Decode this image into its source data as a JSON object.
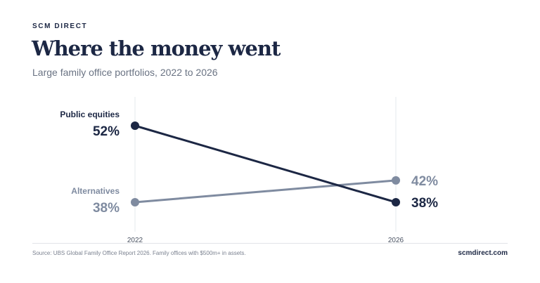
{
  "header": {
    "brand": "SCM DIRECT",
    "title": "Where the money went",
    "subtitle": "Large family office portfolios, 2022 to 2026"
  },
  "footer": {
    "source": "Source: UBS Global Family Office Report 2026. Family offices with $500m+ in assets.",
    "domain": "scmdirect.com"
  },
  "colors": {
    "public_equities": "#1c2744",
    "alternatives": "#7f8ba0",
    "gridline": "#e6e8ec",
    "axis_label": "#4a5262"
  },
  "chart_data": {
    "type": "line",
    "title": "Where the money went",
    "subtitle": "Large family office portfolios, 2022 to 2026",
    "x": [
      "2022",
      "2026"
    ],
    "series": [
      {
        "name": "Public equities",
        "values": [
          52,
          38
        ],
        "start_label": "52%",
        "end_label": "38%",
        "color": "#1c2744"
      },
      {
        "name": "Alternatives",
        "values": [
          38,
          42
        ],
        "start_label": "38%",
        "end_label": "42%",
        "color": "#7f8ba0"
      }
    ],
    "unit": "%",
    "grid": true,
    "gridlines": "vertical at each year",
    "legend": "none (series labelled directly at left)"
  }
}
